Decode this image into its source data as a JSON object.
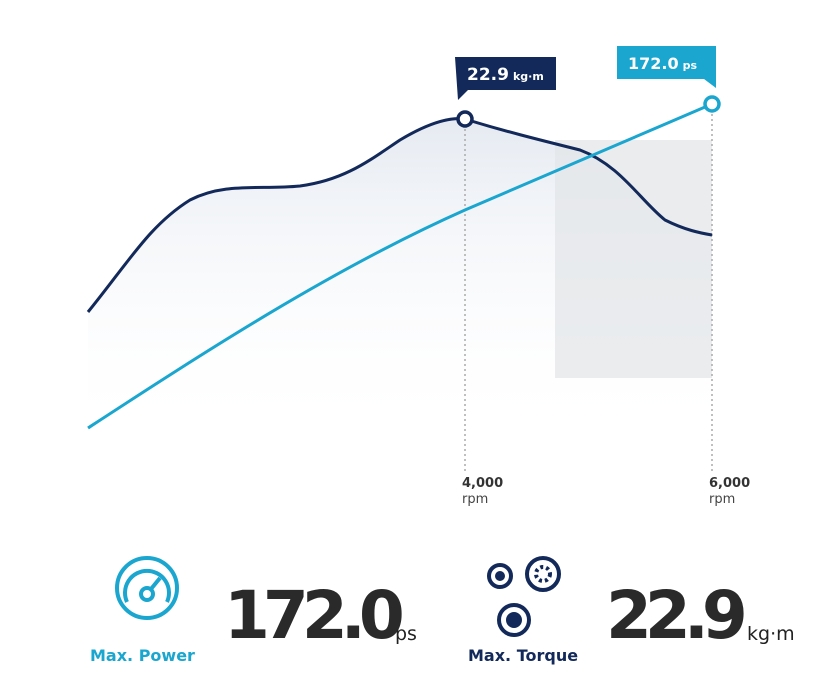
{
  "chart": {
    "callouts": [
      {
        "value": "22.9",
        "unit": "kg·m"
      },
      {
        "value": "172.0",
        "unit": "ps"
      }
    ],
    "rpm_markers": [
      {
        "value": "4,000",
        "unit": "rpm"
      },
      {
        "value": "6,000",
        "unit": "rpm"
      }
    ]
  },
  "specs": [
    {
      "label": "Max. Power",
      "value": "172.0",
      "unit": "ps"
    },
    {
      "label": "Max. Torque",
      "value": "22.9",
      "unit": "kg·m"
    }
  ]
}
